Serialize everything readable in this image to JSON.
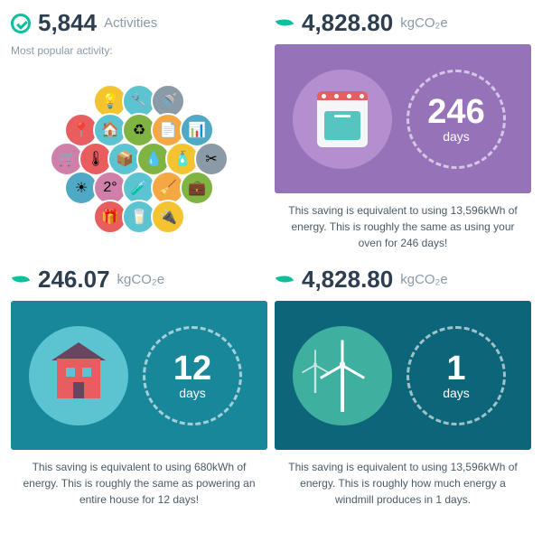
{
  "colors": {
    "accent": "#0dbf9c",
    "text": "#2c3e50",
    "muted": "#8a9aa7",
    "purple": "#9672b9",
    "teal": "#19879a",
    "darkteal": "#0d657a",
    "house_bg": "#5cc4d0",
    "turbine_bg": "#3fb0a0"
  },
  "top_left": {
    "value": "5,844",
    "unit": "Activities",
    "subtitle": "Most popular activity:"
  },
  "top_right": {
    "value": "4,828.80",
    "unit": "kgCO₂e"
  },
  "bubbles": [
    {
      "bg": "#f4c430",
      "e": "💡"
    },
    {
      "bg": "#5cc4d0",
      "e": "🔧"
    },
    {
      "bg": "#8a9aa7",
      "e": "🚿"
    },
    {
      "bg": "#e85d5d",
      "e": "📍"
    },
    {
      "bg": "#5cc4d0",
      "e": "🏠"
    },
    {
      "bg": "#7fb342",
      "e": "♻"
    },
    {
      "bg": "#f4a742",
      "e": "📄"
    },
    {
      "bg": "#4fa8c4",
      "e": "📊"
    },
    {
      "bg": "#d07fa8",
      "e": "🛒"
    },
    {
      "bg": "#e85d5d",
      "e": "🌡"
    },
    {
      "bg": "#5cc4d0",
      "e": "📦"
    },
    {
      "bg": "#7fb342",
      "e": "💧"
    },
    {
      "bg": "#f4c430",
      "e": "🧴"
    },
    {
      "bg": "#8a9aa7",
      "e": "✂"
    },
    {
      "bg": "#4fa8c4",
      "e": "☀"
    },
    {
      "bg": "#d07fa8",
      "e": "2°"
    },
    {
      "bg": "#5cc4d0",
      "e": "🧪"
    },
    {
      "bg": "#f4a742",
      "e": "🧹"
    },
    {
      "bg": "#7fb342",
      "e": "💼"
    },
    {
      "bg": "#e85d5d",
      "e": "🎁"
    },
    {
      "bg": "#5cc4d0",
      "e": "🥛"
    },
    {
      "bg": "#f4c430",
      "e": "🔌"
    }
  ],
  "oven_card": {
    "ring_value": "246",
    "ring_label": "days",
    "desc": "This saving is equivalent to using 13,596kWh of energy. This is roughly the same as using your oven for 246 days!",
    "illus_bg": "#b48fd0"
  },
  "mid_left": {
    "value": "246.07",
    "unit": "kgCO₂e"
  },
  "mid_right": {
    "value": "4,828.80",
    "unit": "kgCO₂e"
  },
  "house_card": {
    "ring_value": "12",
    "ring_label": "days",
    "desc": "This saving is equivalent to using 680kWh of energy. This is roughly the same as powering an entire house for 12 days!"
  },
  "turbine_card": {
    "ring_value": "1",
    "ring_label": "days",
    "desc": "This saving is equivalent to using 13,596kWh of energy. This is roughly how much energy a windmill produces in 1 days."
  }
}
